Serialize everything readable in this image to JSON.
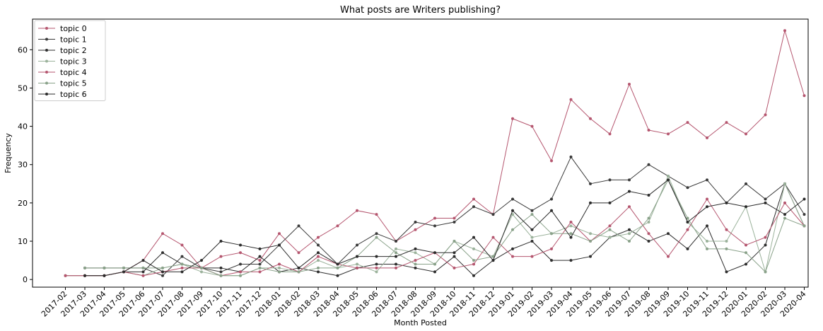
{
  "chart_data": {
    "type": "line",
    "title": "What posts are Writers publishing?",
    "xlabel": "Month Posted",
    "ylabel": "Frequency",
    "ylim": [
      -2,
      68
    ],
    "yticks": [
      0,
      10,
      20,
      30,
      40,
      50,
      60
    ],
    "grid": false,
    "legend_position": "upper-left",
    "categories": [
      "2017-02",
      "2017-03",
      "2017-04",
      "2017-05",
      "2017-06",
      "2017-07",
      "2017-08",
      "2017-09",
      "2017-10",
      "2017-11",
      "2017-12",
      "2018-01",
      "2018-02",
      "2018-03",
      "2018-04",
      "2018-05",
      "2018-06",
      "2018-07",
      "2018-08",
      "2018-09",
      "2018-10",
      "2018-11",
      "2018-12",
      "2019-01",
      "2019-02",
      "2019-03",
      "2019-04",
      "2019-05",
      "2019-06",
      "2019-07",
      "2019-08",
      "2019-09",
      "2019-10",
      "2019-11",
      "2019-12",
      "2020-01",
      "2020-02",
      "2020-03",
      "2020-04"
    ],
    "series": [
      {
        "name": "topic 0",
        "color": "#b5566f",
        "values": [
          1,
          1,
          1,
          2,
          5,
          12,
          9,
          3,
          6,
          7,
          5,
          12,
          7,
          11,
          14,
          18,
          17,
          10,
          13,
          16,
          16,
          21,
          17,
          42,
          40,
          31,
          47,
          42,
          38,
          51,
          39,
          38,
          41,
          37,
          41,
          38,
          43,
          65,
          48
        ]
      },
      {
        "name": "topic 1",
        "color": "#3a3a3a",
        "values": [
          null,
          3,
          3,
          3,
          3,
          1,
          6,
          3,
          2,
          4,
          4,
          9,
          14,
          9,
          4,
          9,
          12,
          10,
          15,
          14,
          15,
          19,
          17,
          21,
          18,
          21,
          32,
          25,
          26,
          26,
          30,
          27,
          24,
          26,
          20,
          25,
          21,
          25,
          17
        ]
      },
      {
        "name": "topic 2",
        "color": "#2e2e2e",
        "values": [
          null,
          1,
          1,
          2,
          2,
          7,
          4,
          3,
          3,
          2,
          6,
          2,
          3,
          2,
          1,
          3,
          4,
          4,
          3,
          2,
          6,
          1,
          5,
          8,
          10,
          5,
          5,
          6,
          11,
          13,
          10,
          12,
          8,
          14,
          2,
          4,
          9,
          25,
          14
        ]
      },
      {
        "name": "topic 3",
        "color": "#9bb29b",
        "values": [
          1,
          1,
          1,
          2,
          1,
          3,
          4,
          2,
          1,
          1,
          3,
          3,
          2,
          5,
          3,
          4,
          2,
          8,
          7,
          4,
          10,
          8,
          6,
          17,
          11,
          12,
          14,
          12,
          11,
          12,
          15,
          27,
          15,
          10,
          10,
          19,
          2,
          25,
          14
        ]
      },
      {
        "name": "topic 4",
        "color": "#b5566f",
        "values": [
          1,
          1,
          1,
          2,
          1,
          2,
          3,
          3,
          1,
          2,
          2,
          4,
          2,
          6,
          4,
          3,
          3,
          3,
          5,
          7,
          3,
          4,
          11,
          6,
          6,
          8,
          15,
          10,
          14,
          19,
          12,
          6,
          13,
          21,
          13,
          9,
          11,
          20,
          14
        ]
      },
      {
        "name": "topic 5",
        "color": "#8aa28a",
        "values": [
          null,
          3,
          3,
          3,
          3,
          3,
          4,
          3,
          1,
          1,
          3,
          2,
          2,
          3,
          3,
          6,
          11,
          7,
          4,
          4,
          10,
          5,
          6,
          13,
          17,
          12,
          12,
          10,
          13,
          10,
          16,
          26,
          16,
          8,
          8,
          7,
          2,
          16,
          14
        ]
      },
      {
        "name": "topic 6",
        "color": "#2b2b2b",
        "values": [
          null,
          1,
          1,
          2,
          5,
          2,
          2,
          5,
          10,
          9,
          8,
          9,
          3,
          7,
          4,
          6,
          6,
          6,
          8,
          7,
          7,
          11,
          5,
          18,
          13,
          18,
          11,
          20,
          20,
          23,
          22,
          26,
          15,
          19,
          20,
          19,
          20,
          17,
          21
        ]
      }
    ]
  }
}
